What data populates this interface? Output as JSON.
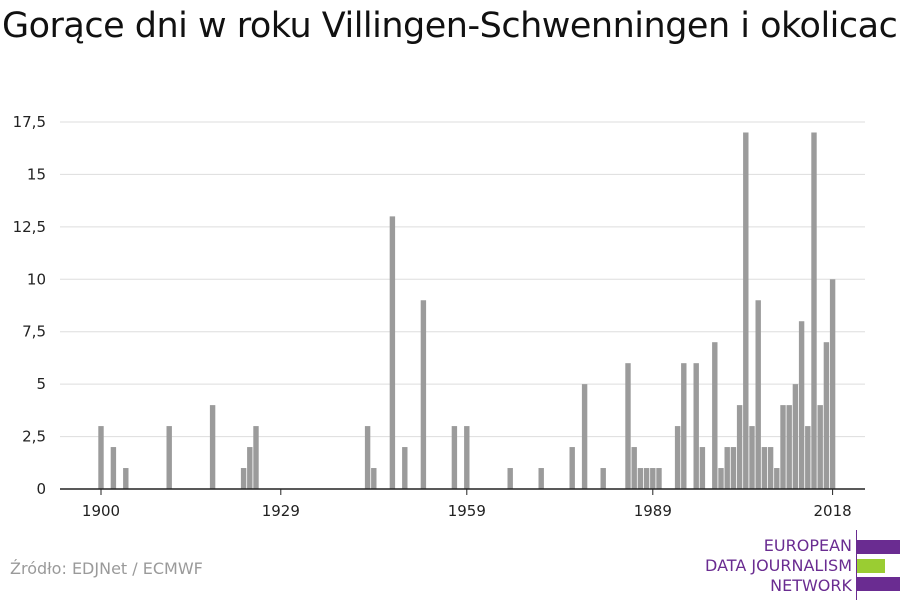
{
  "title": "Gorące dni w roku Villingen-Schwenningen i okolicach",
  "source": "Źródło: EDJNet / ECMWF",
  "logo": {
    "lines": [
      "EUROPEAN",
      "DATA JOURNALISM",
      "NETWORK"
    ],
    "colors": {
      "purple": "#6a2c91",
      "green": "#9acd32"
    }
  },
  "colors": {
    "bar": "#9b9b9b",
    "grid": "#dddddd",
    "axis": "#222222",
    "text": "#222222"
  },
  "chart_data": {
    "type": "bar",
    "ylim": [
      0,
      17.5
    ],
    "yticks": [
      0,
      2.5,
      5,
      7.5,
      10,
      12.5,
      15,
      17.5
    ],
    "ytick_labels": [
      "0",
      "2,5",
      "5",
      "7,5",
      "10",
      "12,5",
      "15",
      "17,5"
    ],
    "xticks": [
      1900,
      1929,
      1959,
      1989,
      2018
    ],
    "xtick_labels": [
      "1900",
      "1929",
      "1959",
      "1989",
      "2018"
    ],
    "grid": true,
    "x": [
      1900,
      1902,
      1904,
      1911,
      1918,
      1923,
      1924,
      1925,
      1943,
      1944,
      1947,
      1949,
      1952,
      1957,
      1959,
      1966,
      1971,
      1976,
      1978,
      1981,
      1985,
      1986,
      1987,
      1988,
      1989,
      1990,
      1993,
      1994,
      1996,
      1997,
      1999,
      2000,
      2001,
      2002,
      2003,
      2004,
      2005,
      2006,
      2007,
      2008,
      2009,
      2010,
      2011,
      2012,
      2013,
      2014,
      2015,
      2016,
      2017,
      2018
    ],
    "values": [
      3,
      2,
      1,
      3,
      4,
      1,
      2,
      3,
      3,
      1,
      13,
      2,
      9,
      3,
      3,
      1,
      1,
      2,
      5,
      1,
      6,
      2,
      1,
      1,
      1,
      1,
      3,
      6,
      6,
      2,
      7,
      1,
      2,
      2,
      4,
      17,
      3,
      9,
      2,
      2,
      1,
      4,
      4,
      5,
      8,
      3,
      17,
      4,
      7,
      10
    ]
  }
}
